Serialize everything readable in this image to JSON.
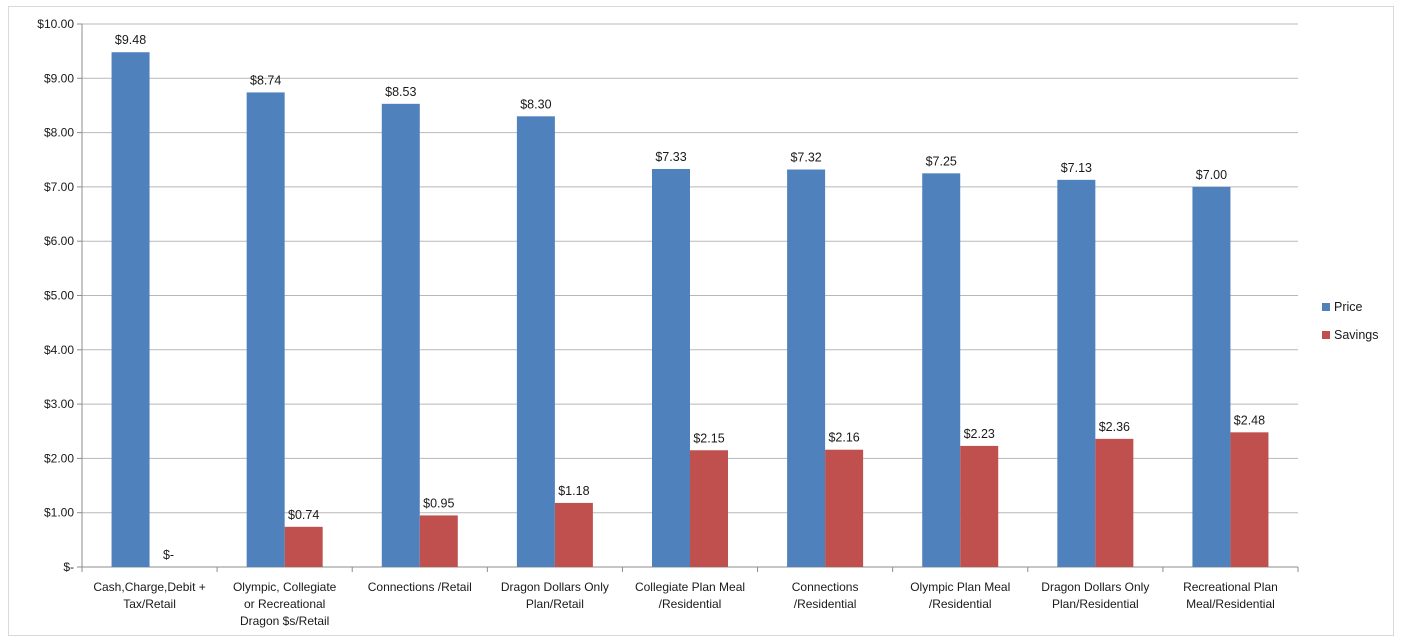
{
  "chart_data": {
    "type": "bar",
    "title": "",
    "xlabel": "",
    "ylabel": "",
    "ylim": [
      0,
      10
    ],
    "yticks": [
      {
        "value": 0,
        "label": "$-"
      },
      {
        "value": 1,
        "label": "$1.00"
      },
      {
        "value": 2,
        "label": "$2.00"
      },
      {
        "value": 3,
        "label": "$3.00"
      },
      {
        "value": 4,
        "label": "$4.00"
      },
      {
        "value": 5,
        "label": "$5.00"
      },
      {
        "value": 6,
        "label": "$6.00"
      },
      {
        "value": 7,
        "label": "$7.00"
      },
      {
        "value": 8,
        "label": "$8.00"
      },
      {
        "value": 9,
        "label": "$9.00"
      },
      {
        "value": 10,
        "label": "$10.00"
      }
    ],
    "grid": true,
    "legend_position": "right",
    "categories": [
      [
        "Cash,Charge,Debit +",
        "Tax/Retail"
      ],
      [
        "Olympic, Collegiate",
        "or Recreational",
        "Dragon $s/Retail"
      ],
      [
        "Connections /Retail"
      ],
      [
        "Dragon Dollars Only",
        "Plan/Retail"
      ],
      [
        "Collegiate Plan Meal",
        "/Residential"
      ],
      [
        "Connections",
        "/Residential"
      ],
      [
        "Olympic Plan Meal",
        "/Residential"
      ],
      [
        "Dragon Dollars Only",
        "Plan/Residential"
      ],
      [
        "Recreational Plan",
        "Meal/Residential"
      ]
    ],
    "series": [
      {
        "name": "Price",
        "color": "#4f81bd",
        "values": [
          9.48,
          8.74,
          8.53,
          8.3,
          7.33,
          7.32,
          7.25,
          7.13,
          7.0
        ],
        "labels": [
          "$9.48",
          "$8.74",
          "$8.53",
          "$8.30",
          "$7.33",
          "$7.32",
          "$7.25",
          "$7.13",
          "$7.00"
        ]
      },
      {
        "name": "Savings",
        "color": "#c0504d",
        "values": [
          0,
          0.74,
          0.95,
          1.18,
          2.15,
          2.16,
          2.23,
          2.36,
          2.48
        ],
        "labels": [
          "$-",
          "$0.74",
          "$0.95",
          "$1.18",
          "$2.15",
          "$2.16",
          "$2.23",
          "$2.36",
          "$2.48"
        ]
      }
    ]
  }
}
